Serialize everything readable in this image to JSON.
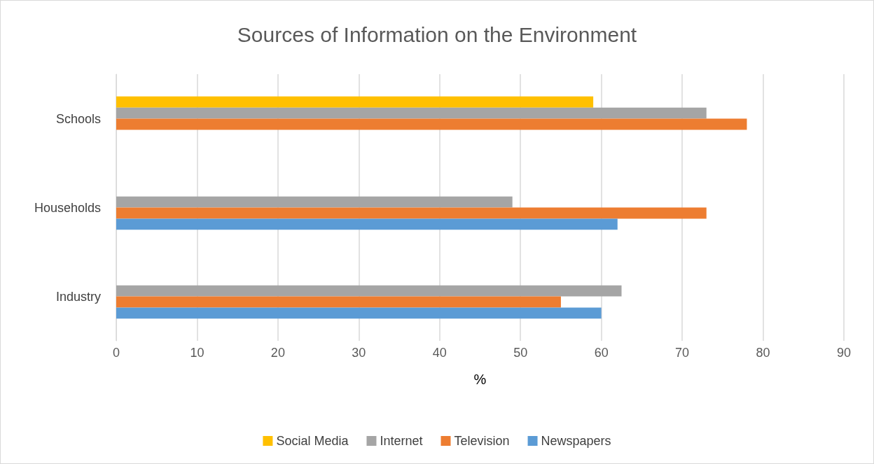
{
  "chart_data": {
    "type": "bar",
    "orientation": "horizontal",
    "title": "Sources of Information on the Environment",
    "xlabel": "%",
    "categories": [
      "Schools",
      "Households",
      "Industry"
    ],
    "series": [
      {
        "name": "Social Media",
        "color": "#ffc000",
        "values": [
          59,
          null,
          null
        ]
      },
      {
        "name": "Internet",
        "color": "#a5a5a5",
        "values": [
          73,
          49,
          62.5
        ]
      },
      {
        "name": "Television",
        "color": "#ed7d31",
        "values": [
          78,
          73,
          55
        ]
      },
      {
        "name": "Newspapers",
        "color": "#5b9bd5",
        "values": [
          null,
          62,
          60
        ]
      }
    ],
    "xlim": [
      0,
      90
    ],
    "xticks": [
      0,
      10,
      20,
      30,
      40,
      50,
      60,
      70,
      80,
      90
    ],
    "grid": "x",
    "legend": "bottom"
  }
}
